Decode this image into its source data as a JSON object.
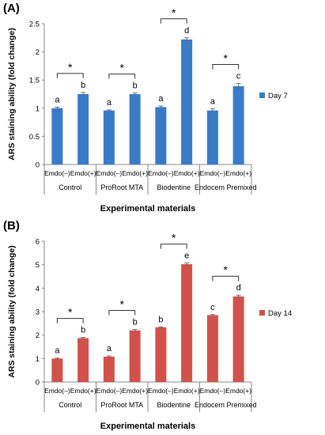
{
  "panel_a_label": "(A)",
  "panel_b_label": "(B)",
  "chart_data": [
    {
      "type": "bar",
      "ylabel": "ARS staining ability (fold change)",
      "xlabel": "Experimental materials",
      "ylim": [
        0,
        2.5
      ],
      "yticks": [
        "0",
        "0.5",
        "1",
        "1.5",
        "2",
        "2.5"
      ],
      "groups": [
        "Control",
        "ProRoot MTA",
        "Biodentine",
        "Endocem Premixed"
      ],
      "categories": [
        "Emdo(–)",
        "Emdo(+)",
        "Emdo(–)",
        "Emdo(+)",
        "Emdo(–)",
        "Emdo(+)",
        "Emdo(–)",
        "Emdo(+)"
      ],
      "series": [
        {
          "name": "Day 7",
          "values": [
            1.0,
            1.25,
            0.96,
            1.25,
            1.02,
            2.22,
            0.96,
            1.39
          ],
          "errors": [
            0.02,
            0.03,
            0.01,
            0.02,
            0.02,
            0.03,
            0.03,
            0.05
          ]
        }
      ],
      "letters": [
        "a",
        "b",
        "a",
        "b",
        "a",
        "d",
        "a",
        "c"
      ],
      "significance": [
        {
          "from": 0,
          "to": 1,
          "label": "*"
        },
        {
          "from": 2,
          "to": 3,
          "label": "*"
        },
        {
          "from": 4,
          "to": 5,
          "label": "*"
        },
        {
          "from": 6,
          "to": 7,
          "label": "*"
        }
      ],
      "color": "#3a7bc8",
      "legend": "right"
    },
    {
      "type": "bar",
      "ylabel": "ARS staining ability (fold change)",
      "xlabel": "Experimental materials",
      "ylim": [
        0,
        6
      ],
      "yticks": [
        "0",
        "1",
        "2",
        "3",
        "4",
        "5",
        "6"
      ],
      "groups": [
        "Control",
        "ProRoot MTA",
        "Biodentine",
        "Endocem Premixed"
      ],
      "categories": [
        "Emdo(–)",
        "Emdo(+)",
        "Emdo(–)",
        "Emdo(+)",
        "Emdo(–)",
        "Emdo(+)",
        "Emdo(–)",
        "Emdo(+)"
      ],
      "series": [
        {
          "name": "Day 14",
          "values": [
            1.0,
            1.87,
            1.08,
            2.2,
            2.33,
            5.02,
            2.85,
            3.65
          ],
          "errors": [
            0.02,
            0.03,
            0.03,
            0.04,
            0.02,
            0.05,
            0.02,
            0.05
          ]
        }
      ],
      "letters": [
        "a",
        "b",
        "a",
        "b",
        "b",
        "e",
        "c",
        "d"
      ],
      "significance": [
        {
          "from": 0,
          "to": 1,
          "label": "*"
        },
        {
          "from": 2,
          "to": 3,
          "label": "*"
        },
        {
          "from": 4,
          "to": 5,
          "label": "*"
        },
        {
          "from": 6,
          "to": 7,
          "label": "*"
        }
      ],
      "color": "#d0524a",
      "legend": "right"
    }
  ]
}
